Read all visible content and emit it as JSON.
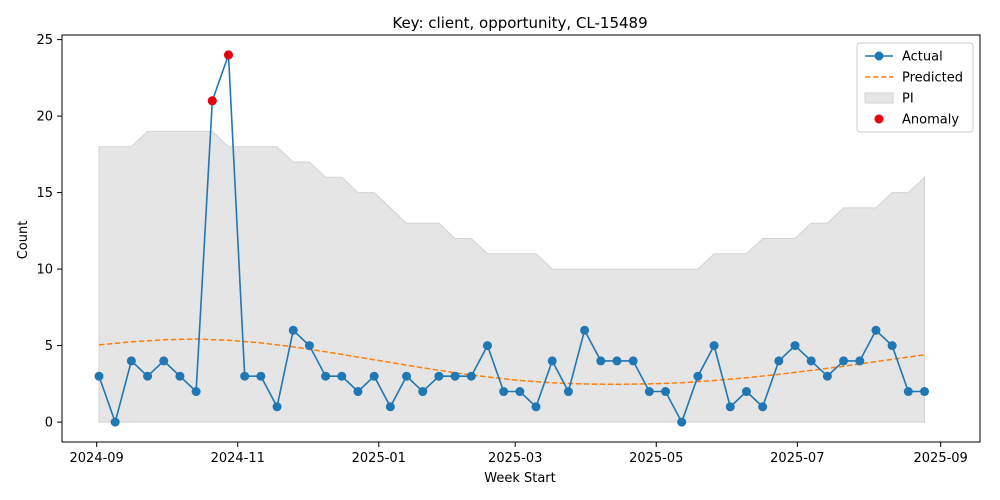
{
  "chart_data": {
    "type": "line",
    "title": "Key: client, opportunity, CL-15489",
    "xlabel": "Week Start",
    "ylabel": "Count",
    "x_type": "date",
    "xlim": [
      "2024-08-17",
      "2025-09-18"
    ],
    "ylim": [
      -1.3,
      25.3
    ],
    "x_ticks": [
      "2024-09",
      "2024-11",
      "2025-01",
      "2025-03",
      "2025-05",
      "2025-07",
      "2025-09"
    ],
    "y_ticks": [
      0,
      5,
      10,
      15,
      20,
      25
    ],
    "legend_position": "top-right",
    "grid": false,
    "colors": {
      "actual": "#1f77b4",
      "predicted": "#ff7f0e",
      "pi_fill": "#e5e5e5",
      "pi_edge": "#d3d3d3",
      "anomaly": "#e8000b"
    },
    "series": [
      {
        "name": "Actual",
        "style": "line-marker",
        "x": [
          "2024-09-02",
          "2024-09-09",
          "2024-09-16",
          "2024-09-23",
          "2024-09-30",
          "2024-10-07",
          "2024-10-14",
          "2024-10-21",
          "2024-10-28",
          "2024-11-04",
          "2024-11-11",
          "2024-11-18",
          "2024-11-25",
          "2024-12-02",
          "2024-12-09",
          "2024-12-16",
          "2024-12-23",
          "2024-12-30",
          "2025-01-06",
          "2025-01-13",
          "2025-01-20",
          "2025-01-27",
          "2025-02-03",
          "2025-02-10",
          "2025-02-17",
          "2025-02-24",
          "2025-03-03",
          "2025-03-10",
          "2025-03-17",
          "2025-03-24",
          "2025-03-31",
          "2025-04-07",
          "2025-04-14",
          "2025-04-21",
          "2025-04-28",
          "2025-05-05",
          "2025-05-12",
          "2025-05-19",
          "2025-05-26",
          "2025-06-02",
          "2025-06-09",
          "2025-06-16",
          "2025-06-23",
          "2025-06-30",
          "2025-07-07",
          "2025-07-14",
          "2025-07-21",
          "2025-07-28",
          "2025-08-04",
          "2025-08-11",
          "2025-08-18",
          "2025-08-25"
        ],
        "y": [
          3,
          0,
          4,
          3,
          4,
          3,
          2,
          21,
          24,
          3,
          3,
          1,
          6,
          5,
          3,
          3,
          2,
          3,
          1,
          3,
          2,
          3,
          3,
          3,
          5,
          2,
          2,
          1,
          4,
          2,
          6,
          4,
          4,
          4,
          2,
          2,
          0,
          3,
          5,
          1,
          2,
          1,
          4,
          5,
          4,
          3,
          4,
          4,
          6,
          5,
          2,
          2
        ]
      },
      {
        "name": "Predicted",
        "style": "dashed",
        "x": [
          "2024-09-02",
          "2024-09-16",
          "2024-09-30",
          "2024-10-14",
          "2024-10-28",
          "2024-11-11",
          "2024-11-25",
          "2024-12-09",
          "2024-12-23",
          "2025-01-06",
          "2025-01-20",
          "2025-02-03",
          "2025-02-17",
          "2025-03-03",
          "2025-03-17",
          "2025-03-31",
          "2025-04-14",
          "2025-04-28",
          "2025-05-12",
          "2025-05-26",
          "2025-06-09",
          "2025-06-23",
          "2025-07-07",
          "2025-07-21",
          "2025-08-04",
          "2025-08-18",
          "2025-08-25"
        ],
        "y": [
          5.05,
          5.25,
          5.38,
          5.43,
          5.35,
          5.18,
          4.92,
          4.6,
          4.25,
          3.9,
          3.55,
          3.22,
          2.95,
          2.72,
          2.57,
          2.49,
          2.47,
          2.5,
          2.57,
          2.72,
          2.9,
          3.12,
          3.38,
          3.65,
          3.95,
          4.25,
          4.4
        ]
      },
      {
        "name": "PI",
        "style": "band",
        "x": [
          "2024-09-02",
          "2024-09-09",
          "2024-09-16",
          "2024-09-23",
          "2024-09-30",
          "2024-10-07",
          "2024-10-14",
          "2024-10-21",
          "2024-10-28",
          "2024-11-04",
          "2024-11-11",
          "2024-11-18",
          "2024-11-25",
          "2024-12-02",
          "2024-12-09",
          "2024-12-16",
          "2024-12-23",
          "2024-12-30",
          "2025-01-06",
          "2025-01-13",
          "2025-01-20",
          "2025-01-27",
          "2025-02-03",
          "2025-02-10",
          "2025-02-17",
          "2025-02-24",
          "2025-03-03",
          "2025-03-10",
          "2025-03-17",
          "2025-03-24",
          "2025-03-31",
          "2025-04-07",
          "2025-04-14",
          "2025-04-21",
          "2025-04-28",
          "2025-05-05",
          "2025-05-12",
          "2025-05-19",
          "2025-05-26",
          "2025-06-02",
          "2025-06-09",
          "2025-06-16",
          "2025-06-23",
          "2025-06-30",
          "2025-07-07",
          "2025-07-14",
          "2025-07-21",
          "2025-07-28",
          "2025-08-04",
          "2025-08-11",
          "2025-08-18",
          "2025-08-25"
        ],
        "lower": [
          0,
          0,
          0,
          0,
          0,
          0,
          0,
          0,
          0,
          0,
          0,
          0,
          0,
          0,
          0,
          0,
          0,
          0,
          0,
          0,
          0,
          0,
          0,
          0,
          0,
          0,
          0,
          0,
          0,
          0,
          0,
          0,
          0,
          0,
          0,
          0,
          0,
          0,
          0,
          0,
          0,
          0,
          0,
          0,
          0,
          0,
          0,
          0,
          0,
          0,
          0,
          0
        ],
        "upper": [
          18,
          18,
          18,
          19,
          19,
          19,
          19,
          19,
          18,
          18,
          18,
          18,
          17,
          17,
          16,
          16,
          15,
          15,
          14,
          13,
          13,
          13,
          12,
          12,
          11,
          11,
          11,
          11,
          10,
          10,
          10,
          10,
          10,
          10,
          10,
          10,
          10,
          10,
          11,
          11,
          11,
          12,
          12,
          12,
          13,
          13,
          14,
          14,
          14,
          15,
          15,
          16
        ]
      },
      {
        "name": "Anomaly",
        "style": "scatter",
        "x": [
          "2024-10-21",
          "2024-10-28"
        ],
        "y": [
          21,
          24
        ]
      }
    ]
  }
}
